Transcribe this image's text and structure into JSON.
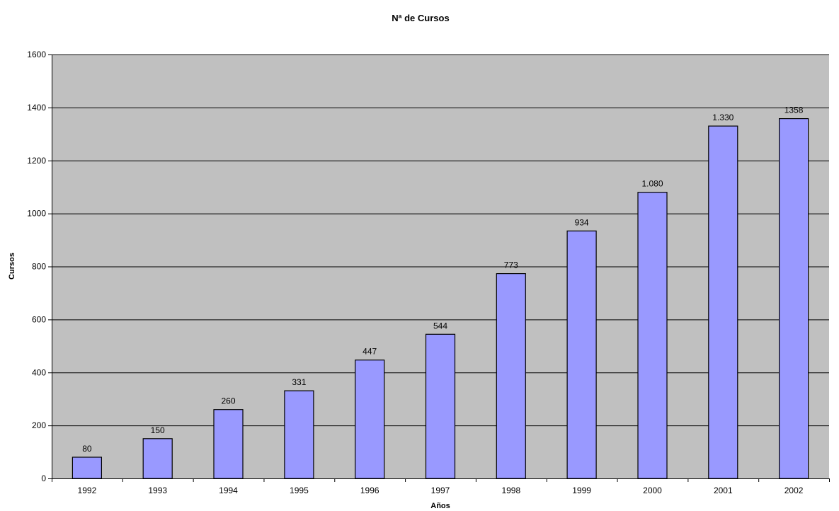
{
  "chart_data": {
    "type": "bar",
    "title": "Nª de Cursos",
    "xlabel": "Años",
    "ylabel": "Cursos",
    "categories": [
      "1992",
      "1993",
      "1994",
      "1995",
      "1996",
      "1997",
      "1998",
      "1999",
      "2000",
      "2001",
      "2002"
    ],
    "values": [
      80,
      150,
      260,
      331,
      447,
      544,
      773,
      934,
      1080,
      1330,
      1358
    ],
    "data_labels": [
      "80",
      "150",
      "260",
      "331",
      "447",
      "544",
      "773",
      "934",
      "1.080",
      "1.330",
      "1358"
    ],
    "ylim": [
      0,
      1600
    ],
    "yticks": [
      0,
      200,
      400,
      600,
      800,
      1000,
      1200,
      1400,
      1600
    ],
    "grid": true,
    "legend": "none",
    "colors": {
      "bar": "#9999ff",
      "bar_border": "#000000",
      "plot_background": "#c0c0c0",
      "gridline": "#000000"
    }
  }
}
